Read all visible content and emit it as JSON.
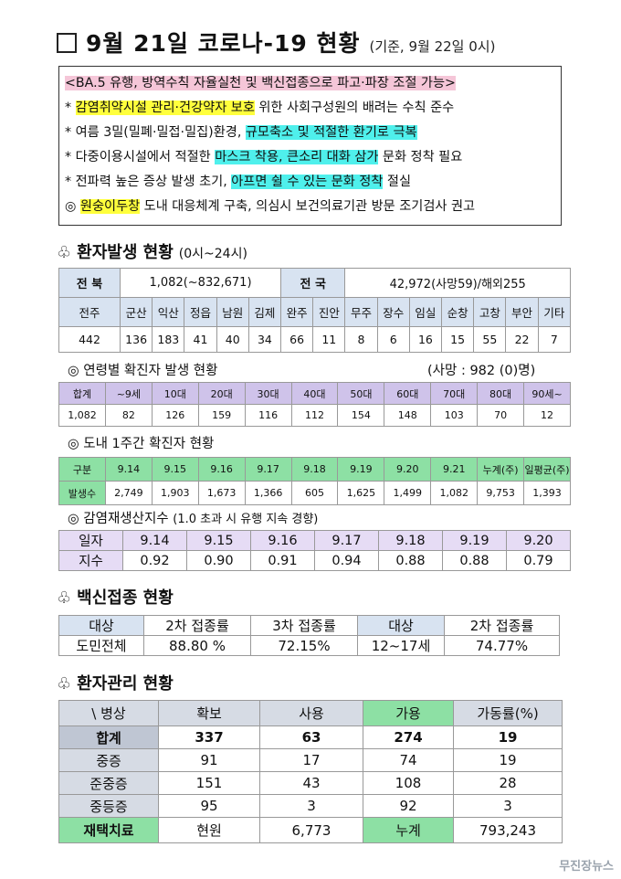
{
  "title": {
    "main": "9월 21일 코로나-19 현황",
    "sub": "(기준, 9월 22일 0시)"
  },
  "notice": {
    "headline": "<BA.5 유행, 방역수칙 자율실천 및 백신접종으로 파고·파장 조절 가능>",
    "lines": [
      {
        "bullet": "*",
        "hl": "감염취약시설 관리·건강약자 보호",
        "rest": " 위한 사회구성원의 배려는 수칙 준수"
      },
      {
        "bullet": "*",
        "pre": "여름 3밀(밀폐·밀접·밀집)환경, ",
        "hl": "규모축소 및 적절한 환기로 극복",
        "rest": ""
      },
      {
        "bullet": "*",
        "pre": "다중이용시설에서 적절한 ",
        "hl": "마스크 착용, 큰소리 대화 삼가",
        "rest": " 문화 정착 필요"
      },
      {
        "bullet": "*",
        "pre": "전파력 높은 증상 발생 초기, ",
        "hl": "아프면 쉴 수 있는 문화 정착",
        "rest": " 절실"
      },
      {
        "bullet": "◎",
        "hl": "원숭이두창",
        "rest": " 도내 대응체계 구축, 의심시 보건의료기관 방문 조기검사 권고"
      }
    ]
  },
  "patients": {
    "heading": "환자발생 현황",
    "range": "(0시~24시)",
    "jeonbuk_label": "전 북",
    "jeonbuk_value": "1,082(~832,671)",
    "national_label": "전 국",
    "national_value": "42,972(사망59)/해외255",
    "regions": [
      "전주",
      "군산",
      "익산",
      "정읍",
      "남원",
      "김제",
      "완주",
      "진안",
      "무주",
      "장수",
      "임실",
      "순창",
      "고창",
      "부안",
      "기타"
    ],
    "counts": [
      "442",
      "136",
      "183",
      "41",
      "40",
      "34",
      "66",
      "11",
      "8",
      "6",
      "16",
      "15",
      "55",
      "22",
      "7"
    ]
  },
  "age": {
    "heading": "◎ 연령별 확진자 발생 현황",
    "death": "(사망 : 982 (0)명)",
    "labels": [
      "합계",
      "~9세",
      "10대",
      "20대",
      "30대",
      "40대",
      "50대",
      "60대",
      "70대",
      "80대",
      "90세~"
    ],
    "values": [
      "1,082",
      "82",
      "126",
      "159",
      "116",
      "112",
      "154",
      "148",
      "103",
      "70",
      "12"
    ]
  },
  "weekly": {
    "heading": "◎ 도내 1주간 확진자 현황",
    "labels": [
      "구분",
      "9.14",
      "9.15",
      "9.16",
      "9.17",
      "9.18",
      "9.19",
      "9.20",
      "9.21",
      "누계(주)",
      "일평균(주)"
    ],
    "values": [
      "발생수",
      "2,749",
      "1,903",
      "1,673",
      "1,366",
      "605",
      "1,625",
      "1,499",
      "1,082",
      "9,753",
      "1,393"
    ]
  },
  "rt": {
    "heading": "◎ 감염재생산지수",
    "note": "(1.0 초과 시 유행 지속 경향)",
    "labels": [
      "일자",
      "9.14",
      "9.15",
      "9.16",
      "9.17",
      "9.18",
      "9.19",
      "9.20"
    ],
    "values": [
      "지수",
      "0.92",
      "0.90",
      "0.91",
      "0.94",
      "0.88",
      "0.88",
      "0.79"
    ]
  },
  "vaccine": {
    "heading": "백신접종 현황",
    "labels": [
      "대상",
      "2차 접종률",
      "3차 접종률",
      "대상",
      "2차 접종률"
    ],
    "values": [
      "도민전체",
      "88.80 %",
      "72.15%",
      "12~17세",
      "74.77%"
    ]
  },
  "care": {
    "heading": "환자관리 현황",
    "header": [
      "\\ 병상",
      "확보",
      "사용",
      "가용",
      "가동률(%)"
    ],
    "rows": [
      [
        "합계",
        "337",
        "63",
        "274",
        "19"
      ],
      [
        "중증",
        "91",
        "17",
        "74",
        "19"
      ],
      [
        "준중증",
        "151",
        "43",
        "108",
        "28"
      ],
      [
        "중등증",
        "95",
        "3",
        "92",
        "3"
      ]
    ],
    "home": [
      "재택치료",
      "현원",
      "6,773",
      "누계",
      "793,243"
    ]
  },
  "watermark": "무진장뉴스"
}
